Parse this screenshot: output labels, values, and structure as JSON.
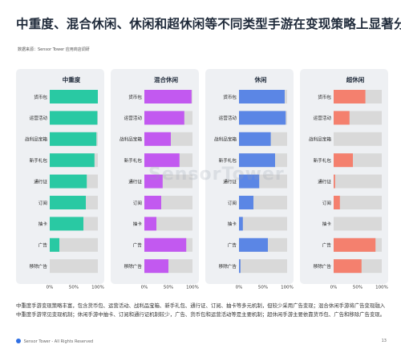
{
  "title": "中重度、混合休闲、休闲和超休闲等不同类型手游在变现策略上显著分化",
  "source": "数据来源：Sensor Tower 应用商店调研",
  "watermark": "SensorTower",
  "description": "中重度手游变现策略丰富，包含货币包、运营活动、战利品宝箱、新手礼包、通行证、订阅、抽卡等多元机制，但较少采用广告变现；混合休闲手游将广告变现融入中重度手游常见变现机制；休闲手游中抽卡、订阅和通行证机制较少，广告、货币包和运营活动等是主要机制；超休闲手游主要依靠货币包、广告和移除广告变现。",
  "footer": {
    "brand": "Sensor Tower - All Rights Reserved",
    "page": "13"
  },
  "colors": {
    "bg_track": "#d9d9d9",
    "panel_bg": "#eef0f3"
  },
  "chart_data": [
    {
      "type": "bar",
      "title": "中重度",
      "color": "#29c9a3",
      "categories": [
        "货币包",
        "运营活动",
        "战利品宝箱",
        "新手礼包",
        "通行证",
        "订阅",
        "抽卡",
        "广告",
        "移除广告"
      ],
      "values": [
        100,
        99,
        97,
        93,
        77,
        75,
        70,
        20,
        0
      ],
      "xticks": [
        "0%",
        "50%",
        "100%"
      ],
      "xlim": [
        0,
        100
      ]
    },
    {
      "type": "bar",
      "title": "混合休闲",
      "color": "#c259f0",
      "categories": [
        "货币包",
        "运营活动",
        "战利品宝箱",
        "新手礼包",
        "通行证",
        "订阅",
        "抽卡",
        "广告",
        "移除广告"
      ],
      "values": [
        98,
        83,
        55,
        73,
        38,
        35,
        25,
        87,
        50
      ],
      "xticks": [
        "0%",
        "50%",
        "100%"
      ],
      "xlim": [
        0,
        100
      ]
    },
    {
      "type": "bar",
      "title": "休闲",
      "color": "#5b86e5",
      "categories": [
        "货币包",
        "运营活动",
        "战利品宝箱",
        "新手礼包",
        "通行证",
        "订阅",
        "抽卡",
        "广告",
        "移除广告"
      ],
      "values": [
        95,
        97,
        66,
        75,
        42,
        30,
        8,
        60,
        3
      ],
      "xticks": [
        "0%",
        "50%",
        "100%"
      ],
      "xlim": [
        0,
        100
      ]
    },
    {
      "type": "bar",
      "title": "超休闲",
      "color": "#f4806e",
      "categories": [
        "货币包",
        "运营活动",
        "战利品宝箱",
        "新手礼包",
        "通行证",
        "订阅",
        "抽卡",
        "广告",
        "移除广告"
      ],
      "values": [
        66,
        33,
        0,
        40,
        3,
        13,
        0,
        87,
        58
      ],
      "xticks": [
        "0%",
        "50%",
        "100%"
      ],
      "xlim": [
        0,
        100
      ]
    }
  ]
}
